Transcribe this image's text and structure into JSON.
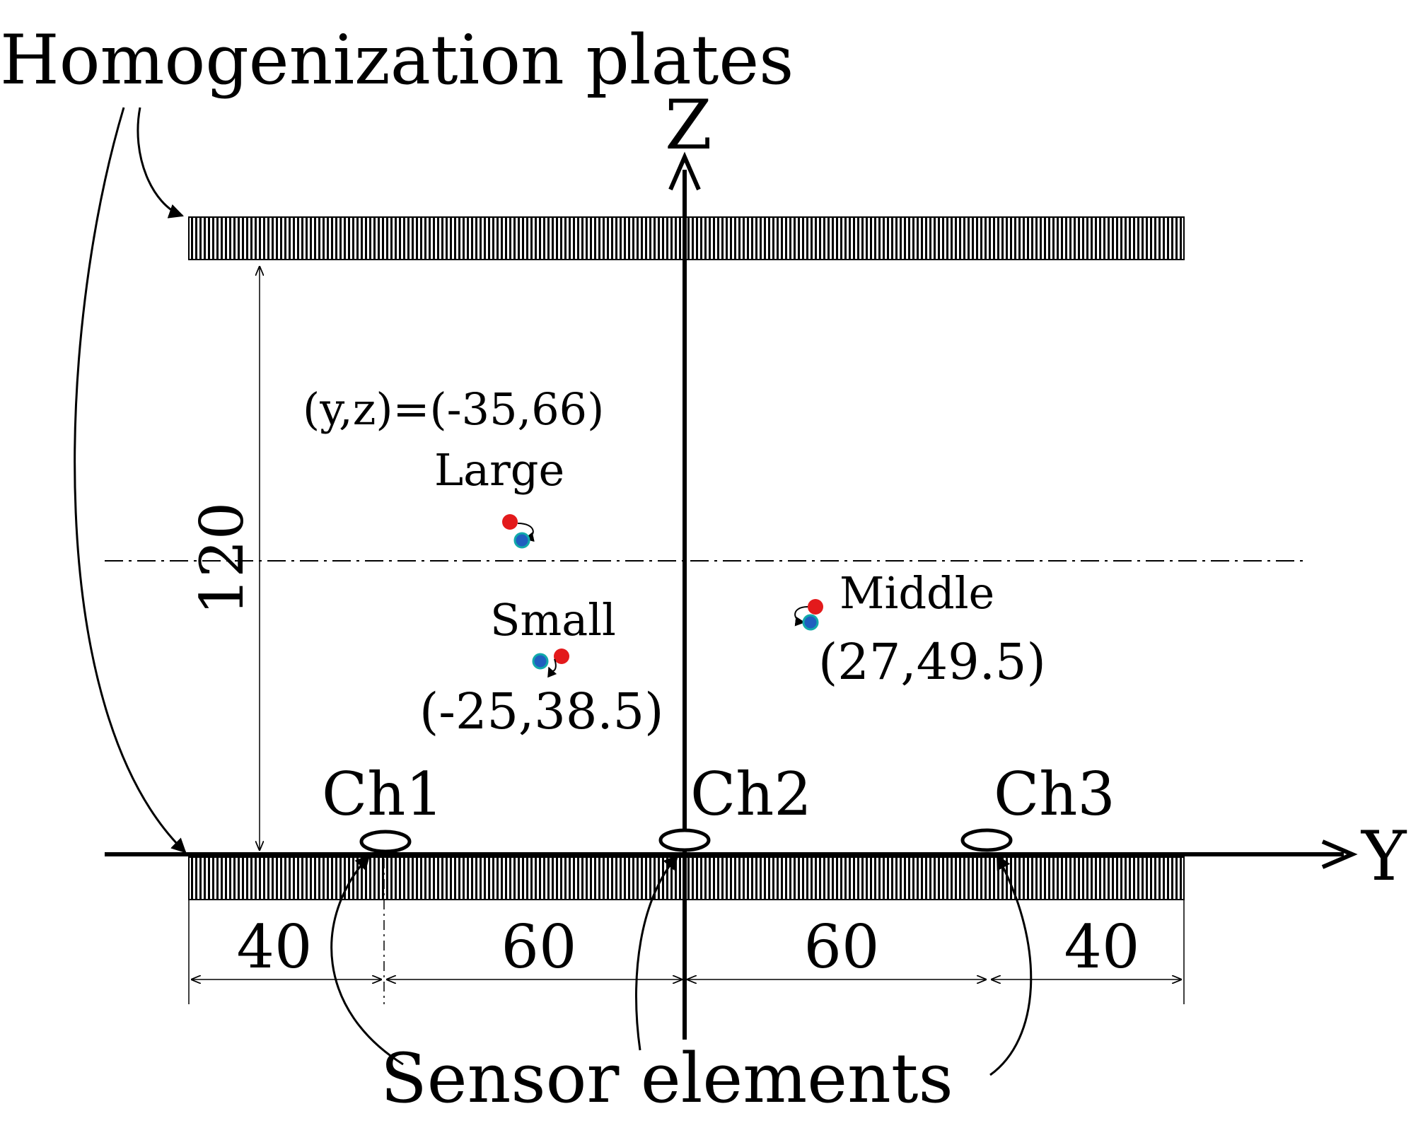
{
  "title": "Homogenization plates",
  "axes": {
    "z_label": "Z",
    "y_label": "Y"
  },
  "dimensions": {
    "height": "120",
    "seg1": "40",
    "seg2": "60",
    "seg3": "60",
    "seg4": "40"
  },
  "channels": {
    "ch1": "Ch1",
    "ch2": "Ch2",
    "ch3": "Ch3"
  },
  "sensor_label": "Sensor elements",
  "objects": {
    "large": {
      "name": "Large",
      "coord": "(y,z)=(-35,66)"
    },
    "middle": {
      "name": "Middle",
      "coord": "(27,49.5)"
    },
    "small": {
      "name": "Small",
      "coord": "(-25,38.5)"
    }
  },
  "colors": {
    "initial_position": "#e31a1c",
    "final_position": "#1f5fbf"
  }
}
